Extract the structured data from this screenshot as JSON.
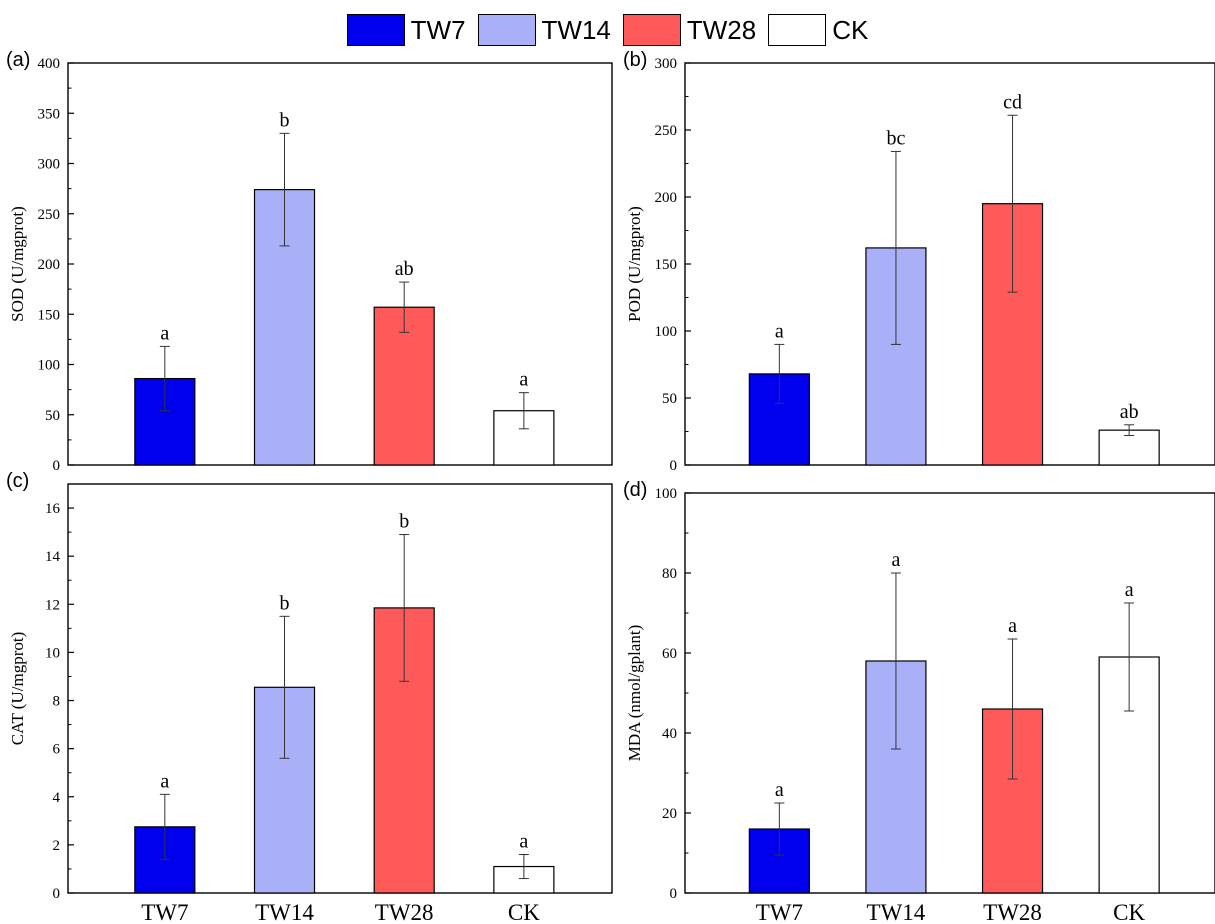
{
  "legend": [
    {
      "label": "TW7",
      "color": "#0000ee"
    },
    {
      "label": "TW14",
      "color": "#aab0f8"
    },
    {
      "label": "TW28",
      "color": "#ff5a5a"
    },
    {
      "label": "CK",
      "color": "#ffffff"
    }
  ],
  "chart_data": [
    {
      "type": "bar",
      "panel": "(a)",
      "ylabel": "SOD (U/mgprot)",
      "categories": [
        "TW7",
        "TW14",
        "TW28",
        "CK"
      ],
      "values": [
        86,
        274,
        157,
        54
      ],
      "errors": [
        32,
        56,
        25,
        18
      ],
      "sig_labels": [
        "a",
        "b",
        "ab",
        "a"
      ],
      "ylim": [
        0,
        400
      ],
      "yticks": [
        0,
        50,
        100,
        150,
        200,
        250,
        300,
        350,
        400
      ],
      "show_x_tick_labels": false
    },
    {
      "type": "bar",
      "panel": "(b)",
      "ylabel": "POD (U/mgprot)",
      "categories": [
        "TW7",
        "TW14",
        "TW28",
        "CK"
      ],
      "values": [
        68,
        162,
        195,
        26
      ],
      "errors": [
        22,
        72,
        66,
        4
      ],
      "sig_labels": [
        "a",
        "bc",
        "cd",
        "ab"
      ],
      "ylim": [
        0,
        300
      ],
      "yticks": [
        0,
        50,
        100,
        150,
        200,
        250,
        300
      ],
      "show_x_tick_labels": false
    },
    {
      "type": "bar",
      "panel": "(c)",
      "ylabel": "CAT (U/mgprot)",
      "categories": [
        "TW7",
        "TW14",
        "TW28",
        "CK"
      ],
      "values": [
        2.75,
        8.55,
        11.85,
        1.1
      ],
      "errors": [
        1.35,
        2.95,
        3.05,
        0.5
      ],
      "sig_labels": [
        "a",
        "b",
        "b",
        "a"
      ],
      "ylim": [
        0,
        17
      ],
      "yticks": [
        0,
        2,
        4,
        6,
        8,
        10,
        12,
        14,
        16
      ],
      "show_x_tick_labels": true
    },
    {
      "type": "bar",
      "panel": "(d)",
      "ylabel": "MDA (nmol/gplant)",
      "categories": [
        "TW7",
        "TW14",
        "TW28",
        "CK"
      ],
      "values": [
        16,
        58,
        46,
        59
      ],
      "errors": [
        6.5,
        22,
        17.5,
        13.5
      ],
      "sig_labels": [
        "a",
        "a",
        "a",
        "a"
      ],
      "ylim": [
        0,
        100
      ],
      "yticks": [
        0,
        20,
        40,
        60,
        80,
        100
      ],
      "show_x_tick_labels": true
    }
  ]
}
